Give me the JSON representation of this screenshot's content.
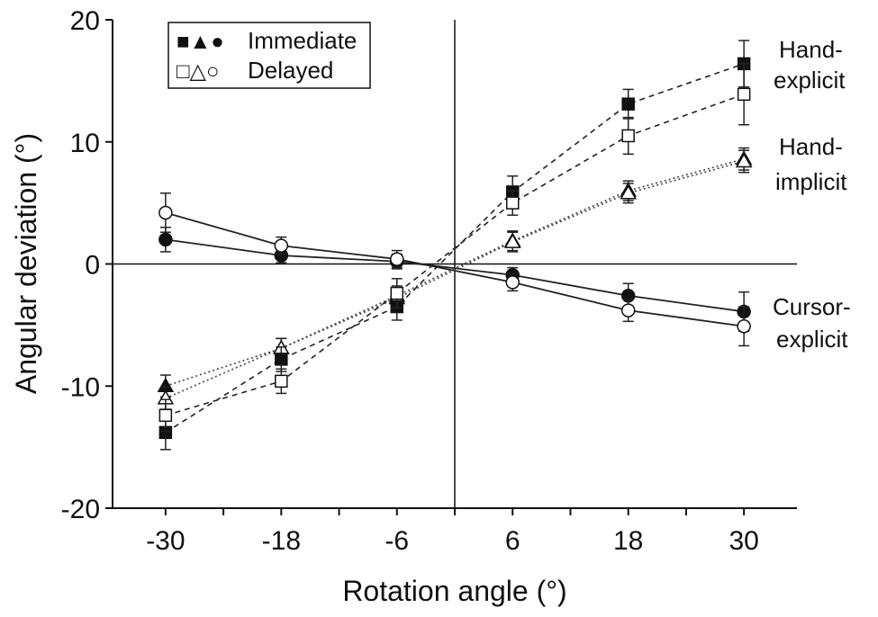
{
  "chart_data": {
    "type": "line",
    "xlabel": "Rotation angle (°)",
    "ylabel": "Angular deviation (°)",
    "xlim": [
      -35.5,
      35.5
    ],
    "ylim": [
      -20,
      20
    ],
    "x": [
      -30,
      -18,
      -6,
      6,
      18,
      30
    ],
    "x_tick_labels": [
      "-30",
      "-18",
      "-6",
      "6",
      "18",
      "30"
    ],
    "y_ticks": [
      -20,
      -10,
      0,
      10,
      20
    ],
    "y_tick_labels": [
      "-20",
      "-10",
      "0",
      "10",
      "20"
    ],
    "legend": {
      "position": "top-left",
      "immediate": {
        "symbols": "■▲●",
        "label": "Immediate"
      },
      "delayed": {
        "symbols": "□△○",
        "label": "Delayed"
      }
    },
    "annotations": {
      "hand_explicit": [
        "Hand-",
        "explicit"
      ],
      "hand_implicit": [
        "Hand-",
        "implicit"
      ],
      "cursor_explicit": [
        "Cursor-",
        "explicit"
      ]
    },
    "series": [
      {
        "name": "Hand-explicit Immediate",
        "marker": "square",
        "filled": true,
        "line": "dashed",
        "values": [
          -13.8,
          -7.8,
          -3.5,
          5.9,
          13.1,
          16.4
        ],
        "errors": [
          1.4,
          1.0,
          1.1,
          1.3,
          1.2,
          1.9
        ]
      },
      {
        "name": "Hand-explicit Delayed",
        "marker": "square",
        "filled": false,
        "line": "dashed",
        "values": [
          -12.4,
          -9.6,
          -2.4,
          5.0,
          10.5,
          13.9
        ],
        "errors": [
          1.3,
          1.0,
          1.2,
          1.0,
          1.5,
          2.5
        ]
      },
      {
        "name": "Hand-implicit Immediate",
        "marker": "triangle",
        "filled": true,
        "line": "dotted",
        "values": [
          -10.0,
          -6.9,
          -2.6,
          1.9,
          6.0,
          8.6
        ],
        "errors": [
          0.9,
          0.8,
          0.8,
          0.8,
          0.8,
          0.9
        ]
      },
      {
        "name": "Hand-implicit Delayed",
        "marker": "triangle",
        "filled": false,
        "line": "dotted",
        "values": [
          -11.0,
          -6.9,
          -2.8,
          1.8,
          5.8,
          8.4
        ],
        "errors": [
          0.9,
          0.8,
          0.8,
          0.8,
          0.8,
          0.9
        ]
      },
      {
        "name": "Cursor-explicit Immediate",
        "marker": "circle",
        "filled": true,
        "line": "solid",
        "values": [
          2.0,
          0.7,
          0.2,
          -0.9,
          -2.6,
          -3.9
        ],
        "errors": [
          1.0,
          0.6,
          0.6,
          0.6,
          1.0,
          1.6
        ]
      },
      {
        "name": "Cursor-explicit Delayed",
        "marker": "circle",
        "filled": false,
        "line": "solid",
        "values": [
          4.2,
          1.5,
          0.4,
          -1.5,
          -3.8,
          -5.1
        ],
        "errors": [
          1.6,
          0.7,
          0.7,
          0.7,
          0.9,
          1.6
        ]
      }
    ]
  }
}
